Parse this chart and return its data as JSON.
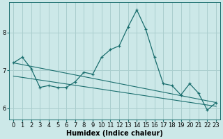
{
  "title": "",
  "xlabel": "Humidex (Indice chaleur)",
  "x": [
    0,
    1,
    2,
    3,
    4,
    5,
    6,
    7,
    8,
    9,
    10,
    11,
    12,
    13,
    14,
    15,
    16,
    17,
    18,
    19,
    20,
    21,
    22,
    23
  ],
  "line1": [
    7.2,
    7.35,
    7.05,
    6.55,
    6.6,
    6.55,
    6.55,
    6.7,
    6.95,
    6.9,
    7.35,
    7.55,
    7.65,
    8.15,
    8.6,
    8.1,
    7.35,
    6.65,
    6.6,
    6.35,
    6.65,
    6.4,
    5.95,
    6.15
  ],
  "line2_x": [
    0,
    23
  ],
  "line2_y": [
    7.2,
    6.15
  ],
  "line3_x": [
    0,
    23
  ],
  "line3_y": [
    6.85,
    6.05
  ],
  "ylim": [
    5.7,
    8.8
  ],
  "xlim": [
    -0.5,
    23.5
  ],
  "yticks": [
    6,
    7,
    8
  ],
  "xticks": [
    0,
    1,
    2,
    3,
    4,
    5,
    6,
    7,
    8,
    9,
    10,
    11,
    12,
    13,
    14,
    15,
    16,
    17,
    18,
    19,
    20,
    21,
    22,
    23
  ],
  "bg_color": "#cce8e8",
  "grid_color": "#aacece",
  "line_color": "#1a6e6e",
  "tick_fontsize": 6,
  "label_fontsize": 7
}
